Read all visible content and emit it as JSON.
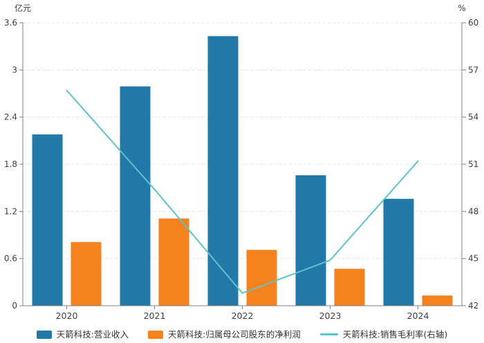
{
  "chart_data": {
    "type": "bar",
    "title": "",
    "categories": [
      "2020",
      "2021",
      "2022",
      "2023",
      "2024"
    ],
    "series": [
      {
        "name": "天箭科技:营业收入",
        "type": "bar",
        "axis": "left",
        "color": "#2278A8",
        "values": [
          2.18,
          2.79,
          3.43,
          1.66,
          1.36
        ]
      },
      {
        "name": "天箭科技:归属母公司股东的净利润",
        "type": "bar",
        "axis": "left",
        "color": "#F5821F",
        "values": [
          0.81,
          1.11,
          0.71,
          0.47,
          0.13
        ]
      },
      {
        "name": "天箭科技:销售毛利率(右轴)",
        "type": "line",
        "axis": "right",
        "color": "#5BC4C6",
        "values": [
          55.7,
          49.4,
          42.8,
          44.9,
          51.2
        ]
      }
    ],
    "left_axis": {
      "title": "亿元",
      "min": 0,
      "max": 3.6,
      "tick_labels": [
        "0",
        "0.6",
        "1.2",
        "1.8",
        "2.4",
        "3",
        "3.6"
      ]
    },
    "right_axis": {
      "title": "%",
      "min": 42,
      "max": 60,
      "tick_labels": [
        "42",
        "45",
        "48",
        "51",
        "54",
        "57",
        "60"
      ]
    },
    "grid": "horizontal dashed",
    "legend_position": "bottom",
    "colors": {
      "axis_line": "#808080",
      "tick_text": "#404040",
      "gridline": "#e3e3e3",
      "background": "#ffffff"
    }
  }
}
